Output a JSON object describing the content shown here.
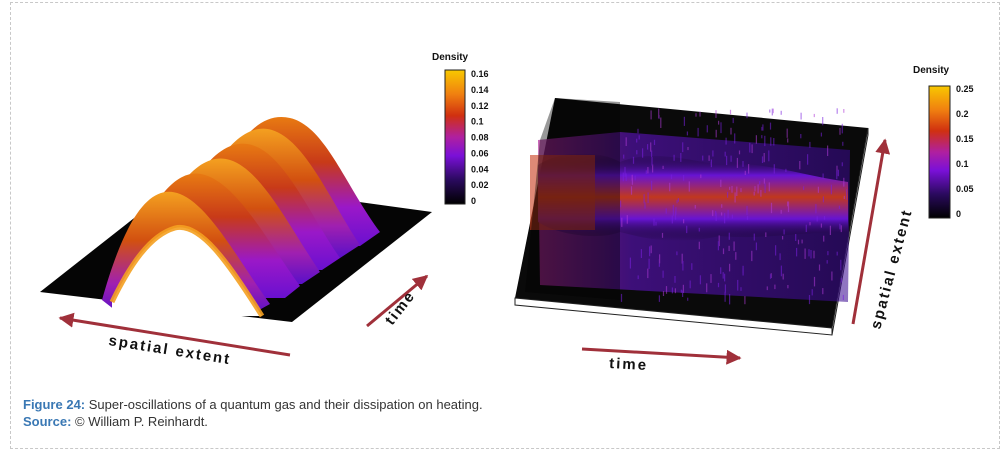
{
  "figure": {
    "left_plot": {
      "colorbar_title": "Density",
      "colorbar_ticks": [
        "0.16",
        "0.14",
        "0.12",
        "0.1",
        "0.08",
        "0.06",
        "0.04",
        "0.02",
        "0"
      ],
      "x_axis_label": "spatial extent",
      "y_axis_label": "time"
    },
    "right_plot": {
      "colorbar_title": "Density",
      "colorbar_ticks": [
        "0.25",
        "0.2",
        "0.15",
        "0.1",
        "0.05",
        "0"
      ],
      "x_axis_label": "time",
      "y_axis_label": "spatial extent"
    }
  },
  "caption": {
    "label": "Figure 24:",
    "text": "Super-oscillations of a quantum gas and their dissipation on heating.",
    "source_label": "Source:",
    "source_text": "© William P. Reinhardt."
  },
  "colors": {
    "caption_label": "#3a78b4",
    "arrow": "#a0303a",
    "colormap": [
      "#000000",
      "#2a0a5e",
      "#7a10d8",
      "#b020a0",
      "#d03010",
      "#f08010",
      "#f8c800"
    ]
  }
}
